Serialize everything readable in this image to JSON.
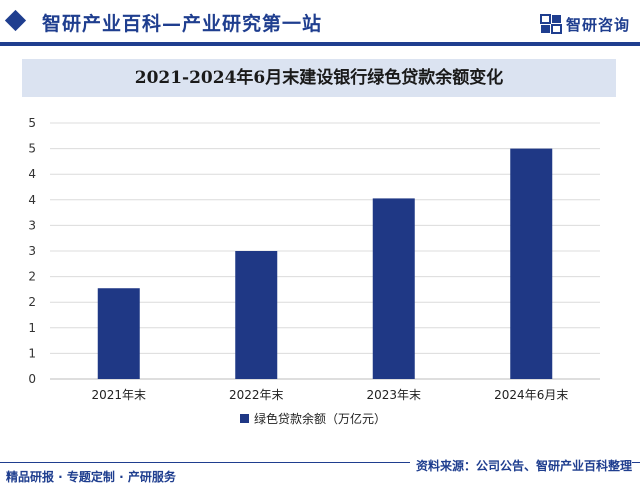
{
  "header": {
    "title": "智研产业百科—产业研究第一站",
    "brand": "智研咨询"
  },
  "footer": {
    "left": "精品研报 · 专题定制 · 产研服务",
    "right": "资料来源：公司公告、智研产业百科整理"
  },
  "chart_data": {
    "type": "bar",
    "title": "2021-2024年6月末建设银行绿色贷款余额变化",
    "categories": [
      "2021年末",
      "2022年末",
      "2023年末",
      "2024年6月末"
    ],
    "series": [
      {
        "name": "绿色贷款余额（万亿元）",
        "values": [
          1.95,
          2.75,
          3.88,
          4.95
        ],
        "color": "#1f3885"
      }
    ],
    "ytick_labels": [
      "0",
      "1",
      "1",
      "2",
      "2",
      "3",
      "3",
      "4",
      "4",
      "5",
      "5"
    ],
    "ylim": [
      0,
      5.5
    ],
    "grid": true,
    "legend": "bottom-center"
  }
}
